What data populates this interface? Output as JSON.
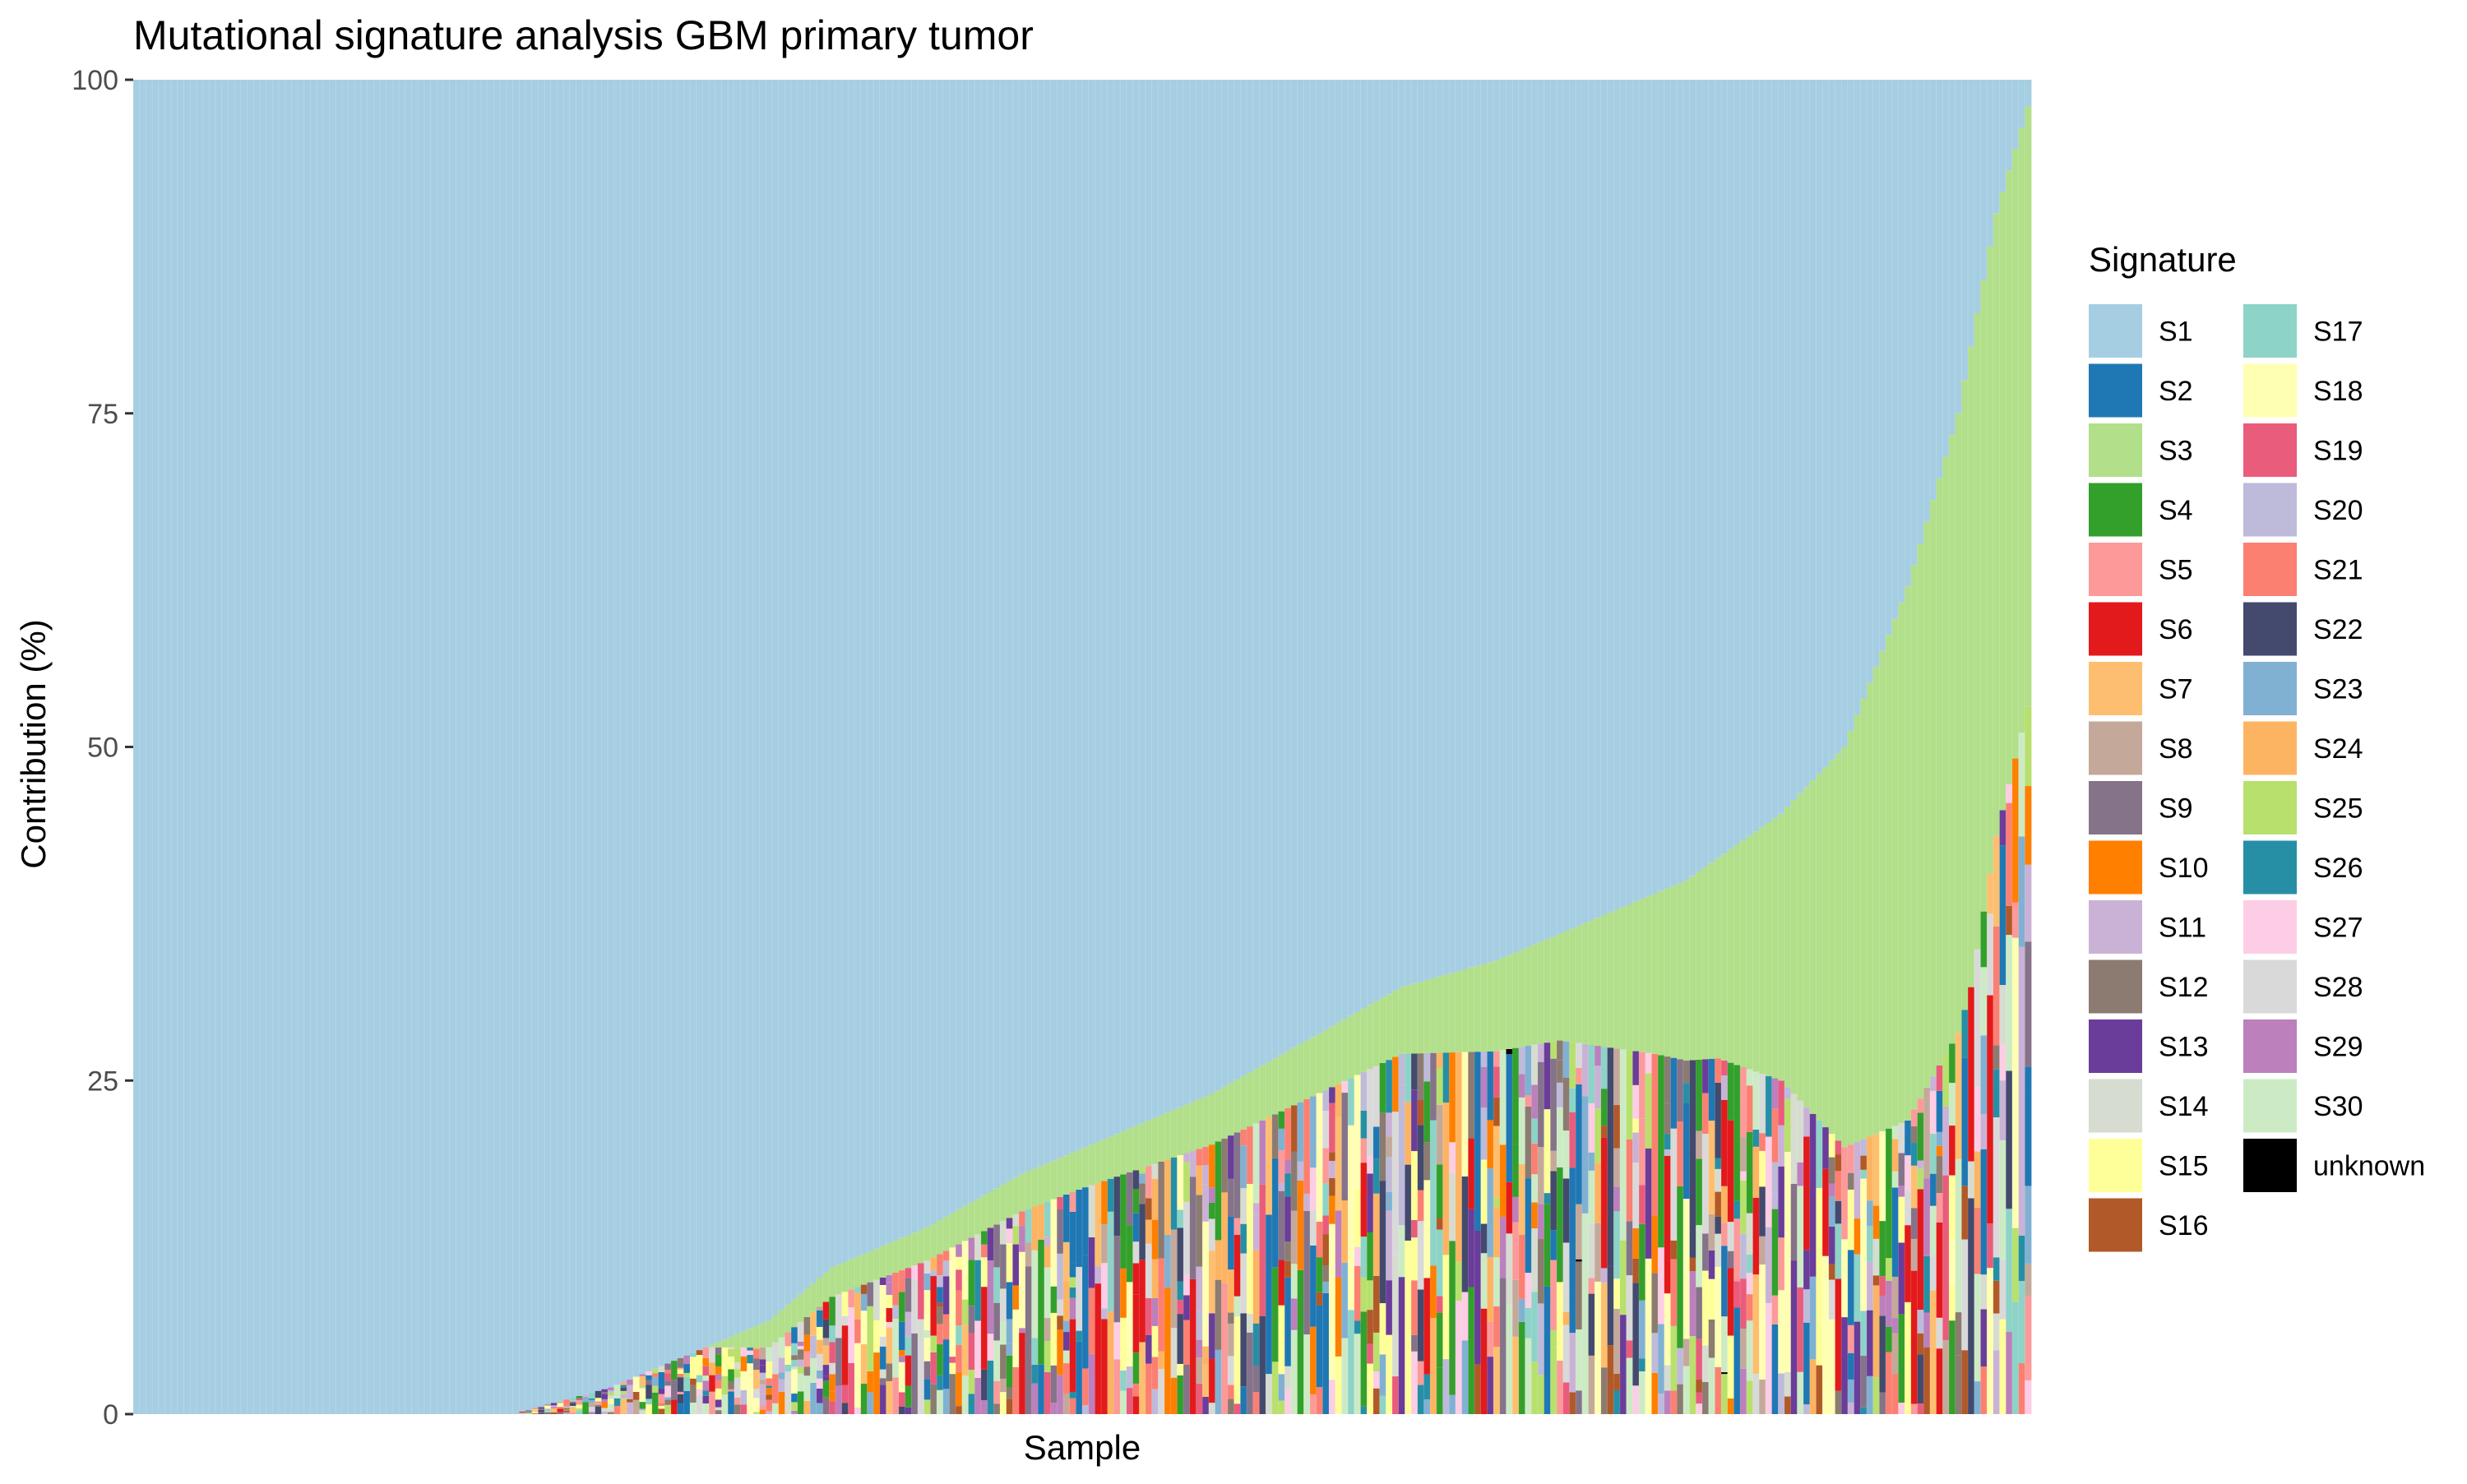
{
  "chart_data": {
    "type": "bar",
    "stacked": true,
    "title": "Mutational signature analysis GBM primary tumor",
    "xlabel": "Sample",
    "ylabel": "Contribution (%)",
    "ylim": [
      0,
      100
    ],
    "yticks": [
      0,
      25,
      50,
      75,
      100
    ],
    "x_tick_labels_shown": false,
    "grid": false,
    "sample_count": 300,
    "legend": {
      "title": "Signature",
      "placement": "right",
      "columns": 2
    },
    "signatures": [
      {
        "name": "S1",
        "color": "#A6CEE3"
      },
      {
        "name": "S2",
        "color": "#1F78B4"
      },
      {
        "name": "S3",
        "color": "#B2DF8A"
      },
      {
        "name": "S4",
        "color": "#33A02C"
      },
      {
        "name": "S5",
        "color": "#FB9A99"
      },
      {
        "name": "S6",
        "color": "#E31A1C"
      },
      {
        "name": "S7",
        "color": "#FDBF6F"
      },
      {
        "name": "S8",
        "color": "#C4A99B"
      },
      {
        "name": "S9",
        "color": "#85738A"
      },
      {
        "name": "S10",
        "color": "#FF7F00"
      },
      {
        "name": "S11",
        "color": "#CAB2D6"
      },
      {
        "name": "S12",
        "color": "#8C7B70"
      },
      {
        "name": "S13",
        "color": "#6A3D9A"
      },
      {
        "name": "S14",
        "color": "#D6DCD0"
      },
      {
        "name": "S15",
        "color": "#FFFF99"
      },
      {
        "name": "S16",
        "color": "#B15928"
      },
      {
        "name": "S17",
        "color": "#8DD3C7"
      },
      {
        "name": "S18",
        "color": "#FFFFB3"
      },
      {
        "name": "S19",
        "color": "#E95C7C"
      },
      {
        "name": "S20",
        "color": "#BEBADA"
      },
      {
        "name": "S21",
        "color": "#FB8072"
      },
      {
        "name": "S22",
        "color": "#434A6E"
      },
      {
        "name": "S23",
        "color": "#80B1D3"
      },
      {
        "name": "S24",
        "color": "#FDB462"
      },
      {
        "name": "S25",
        "color": "#B8E06C"
      },
      {
        "name": "S26",
        "color": "#268FA6"
      },
      {
        "name": "S27",
        "color": "#FCCDE5"
      },
      {
        "name": "S28",
        "color": "#D9D9D9"
      },
      {
        "name": "S29",
        "color": "#BC80BD"
      },
      {
        "name": "S30",
        "color": "#CCEBC5"
      },
      {
        "name": "unknown",
        "color": "#000000"
      }
    ],
    "s1_profile": {
      "description_points_sample_index_to_S1_percent": [
        [
          0,
          100
        ],
        [
          60,
          100
        ],
        [
          61,
          99.8
        ],
        [
          75,
          98
        ],
        [
          90,
          95
        ],
        [
          100,
          93
        ],
        [
          110,
          89
        ],
        [
          125,
          86
        ],
        [
          140,
          82
        ],
        [
          155,
          79
        ],
        [
          170,
          76
        ],
        [
          185,
          72
        ],
        [
          200,
          68
        ],
        [
          215,
          66
        ],
        [
          230,
          63
        ],
        [
          245,
          60
        ],
        [
          260,
          55
        ],
        [
          270,
          50
        ],
        [
          280,
          38
        ],
        [
          288,
          25
        ],
        [
          294,
          10
        ],
        [
          299,
          2
        ]
      ]
    },
    "s3_profile": {
      "description_points_sample_index_to_S3_percent": [
        [
          0,
          0
        ],
        [
          90,
          0
        ],
        [
          100,
          2
        ],
        [
          150,
          3
        ],
        [
          200,
          5
        ],
        [
          225,
          8
        ],
        [
          240,
          12
        ],
        [
          250,
          15
        ],
        [
          260,
          20
        ],
        [
          270,
          30
        ],
        [
          280,
          40
        ],
        [
          290,
          48
        ],
        [
          299,
          45
        ]
      ]
    }
  }
}
